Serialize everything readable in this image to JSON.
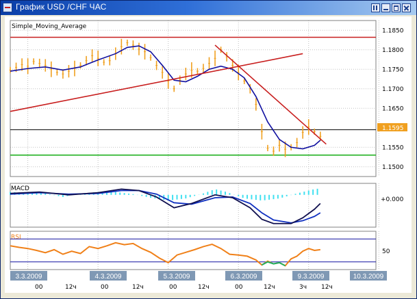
{
  "window": {
    "title": "График USD /CHF  ЧАС",
    "buttons": [
      "restore",
      "minimize",
      "maximize",
      "close"
    ]
  },
  "chart_data": {
    "type": "line",
    "title": "Simple_Moving_Average",
    "instrument": "USD /CHF",
    "timeframe": "ЧАС",
    "price_axis": {
      "ticks": [
        "1.1850",
        "1.1800",
        "1.1750",
        "1.1700",
        "1.1650",
        "1.1595",
        "1.1550",
        "1.1500"
      ],
      "range": [
        1.1475,
        1.1875
      ],
      "current_price": "1.1595"
    },
    "x_axis": {
      "dates": [
        "3.3.2009",
        "4.3.2009",
        "5.3.2009",
        "6.3.2009",
        "9.3.2009",
        "10.3.2009"
      ],
      "hours": [
        "00",
        "12ч",
        "00",
        "12ч",
        "00",
        "12ч",
        "00",
        "12ч",
        "3ч",
        "12ч"
      ]
    },
    "price_bars": [
      [
        0,
        1.1748
      ],
      [
        2,
        1.1755
      ],
      [
        4,
        1.1762
      ],
      [
        6,
        1.1758
      ],
      [
        8,
        1.177
      ],
      [
        10,
        1.1765
      ],
      [
        12,
        1.176
      ],
      [
        14,
        1.175
      ],
      [
        16,
        1.1742
      ],
      [
        18,
        1.1738
      ],
      [
        20,
        1.1745
      ],
      [
        22,
        1.1752
      ],
      [
        24,
        1.176
      ],
      [
        26,
        1.1772
      ],
      [
        28,
        1.1785
      ],
      [
        30,
        1.1778
      ],
      [
        32,
        1.1768
      ],
      [
        34,
        1.1772
      ],
      [
        36,
        1.179
      ],
      [
        38,
        1.1808
      ],
      [
        40,
        1.1818
      ],
      [
        42,
        1.1812
      ],
      [
        44,
        1.1802
      ],
      [
        46,
        1.1795
      ],
      [
        48,
        1.178
      ],
      [
        50,
        1.176
      ],
      [
        52,
        1.1742
      ],
      [
        54,
        1.172
      ],
      [
        56,
        1.17
      ],
      [
        58,
        1.1722
      ],
      [
        60,
        1.1738
      ],
      [
        62,
        1.1748
      ],
      [
        64,
        1.1745
      ],
      [
        66,
        1.1752
      ],
      [
        68,
        1.1765
      ],
      [
        70,
        1.1778
      ],
      [
        72,
        1.18
      ],
      [
        74,
        1.1782
      ],
      [
        76,
        1.176
      ],
      [
        78,
        1.1742
      ],
      [
        80,
        1.172
      ],
      [
        82,
        1.17
      ],
      [
        84,
        1.166
      ],
      [
        86,
        1.159
      ],
      [
        88,
        1.1548
      ],
      [
        90,
        1.154
      ],
      [
        92,
        1.1555
      ],
      [
        94,
        1.1545
      ],
      [
        96,
        1.155
      ],
      [
        98,
        1.1562
      ],
      [
        100,
        1.1588
      ],
      [
        102,
        1.1602
      ],
      [
        104,
        1.159
      ],
      [
        106,
        1.1578
      ]
    ],
    "moving_average": [
      [
        0,
        1.1745
      ],
      [
        6,
        1.1752
      ],
      [
        12,
        1.1756
      ],
      [
        18,
        1.1748
      ],
      [
        24,
        1.1756
      ],
      [
        30,
        1.1774
      ],
      [
        36,
        1.179
      ],
      [
        40,
        1.1806
      ],
      [
        44,
        1.181
      ],
      [
        48,
        1.1795
      ],
      [
        52,
        1.176
      ],
      [
        56,
        1.1722
      ],
      [
        60,
        1.1718
      ],
      [
        64,
        1.1732
      ],
      [
        68,
        1.175
      ],
      [
        72,
        1.1758
      ],
      [
        76,
        1.175
      ],
      [
        80,
        1.1728
      ],
      [
        84,
        1.168
      ],
      [
        88,
        1.1615
      ],
      [
        92,
        1.157
      ],
      [
        96,
        1.155
      ],
      [
        100,
        1.1546
      ],
      [
        104,
        1.1555
      ],
      [
        106,
        1.1568
      ]
    ],
    "horizontal_lines": [
      {
        "value": 1.1832,
        "color": "#c81e1e"
      },
      {
        "value": 1.1595,
        "color": "#000000"
      },
      {
        "value": 1.153,
        "color": "#20b020"
      }
    ],
    "trend_lines": [
      {
        "from": [
          0,
          1.1642
        ],
        "to": [
          100,
          1.179
        ],
        "color": "#c81e1e"
      },
      {
        "from": [
          70,
          1.1812
        ],
        "to": [
          108,
          1.1558
        ],
        "color": "#c81e1e"
      }
    ],
    "macd": {
      "label": "MACD",
      "zero_label": "+0.000",
      "range": [
        -0.0045,
        0.0016
      ],
      "main": [
        [
          0,
          0.0002
        ],
        [
          10,
          0.0004
        ],
        [
          20,
          0.0
        ],
        [
          30,
          0.0003
        ],
        [
          38,
          0.0008
        ],
        [
          44,
          0.0006
        ],
        [
          50,
          -0.0003
        ],
        [
          56,
          -0.0018
        ],
        [
          62,
          -0.0012
        ],
        [
          70,
          0.0
        ],
        [
          76,
          -0.0004
        ],
        [
          82,
          -0.0018
        ],
        [
          86,
          -0.0034
        ],
        [
          90,
          -0.004
        ],
        [
          96,
          -0.004
        ],
        [
          100,
          -0.0032
        ],
        [
          104,
          -0.002
        ],
        [
          106,
          -0.0012
        ]
      ],
      "signal": [
        [
          0,
          0.0001
        ],
        [
          10,
          0.0003
        ],
        [
          20,
          0.0001
        ],
        [
          30,
          0.0002
        ],
        [
          38,
          0.0006
        ],
        [
          44,
          0.0006
        ],
        [
          50,
          0.0001
        ],
        [
          56,
          -0.0011
        ],
        [
          62,
          -0.0013
        ],
        [
          70,
          -0.0004
        ],
        [
          76,
          -0.0003
        ],
        [
          82,
          -0.0012
        ],
        [
          86,
          -0.0025
        ],
        [
          90,
          -0.0035
        ],
        [
          96,
          -0.0039
        ],
        [
          100,
          -0.0036
        ],
        [
          104,
          -0.003
        ],
        [
          106,
          -0.0025
        ]
      ],
      "histogram": [
        [
          0,
          0.0004
        ],
        [
          6,
          0.0003
        ],
        [
          12,
          0.0002
        ],
        [
          18,
          -0.0003
        ],
        [
          24,
          0.0002
        ],
        [
          30,
          0.0004
        ],
        [
          36,
          0.0004
        ],
        [
          42,
          0.0001
        ],
        [
          48,
          -0.0004
        ],
        [
          54,
          -0.0008
        ],
        [
          60,
          -0.0005
        ],
        [
          66,
          0.0002
        ],
        [
          70,
          0.0008
        ],
        [
          74,
          0.0004
        ],
        [
          80,
          -0.0005
        ],
        [
          86,
          -0.0008
        ],
        [
          92,
          -0.0005
        ],
        [
          98,
          0.0002
        ],
        [
          104,
          0.0008
        ],
        [
          106,
          0.0009
        ]
      ]
    },
    "rsi": {
      "label": "RSI",
      "level_label": "50",
      "range": [
        0,
        100
      ],
      "levels": [
        80,
        20
      ],
      "values": [
        [
          0,
          62
        ],
        [
          3,
          58
        ],
        [
          6,
          55
        ],
        [
          9,
          50
        ],
        [
          12,
          44
        ],
        [
          15,
          52
        ],
        [
          18,
          40
        ],
        [
          21,
          48
        ],
        [
          24,
          42
        ],
        [
          27,
          60
        ],
        [
          30,
          55
        ],
        [
          33,
          62
        ],
        [
          36,
          70
        ],
        [
          39,
          65
        ],
        [
          42,
          68
        ],
        [
          45,
          55
        ],
        [
          48,
          45
        ],
        [
          51,
          30
        ],
        [
          54,
          18
        ],
        [
          57,
          38
        ],
        [
          60,
          45
        ],
        [
          63,
          52
        ],
        [
          66,
          60
        ],
        [
          69,
          66
        ],
        [
          72,
          55
        ],
        [
          75,
          40
        ],
        [
          78,
          38
        ],
        [
          81,
          35
        ],
        [
          84,
          25
        ],
        [
          86,
          12
        ],
        [
          88,
          22
        ],
        [
          90,
          15
        ],
        [
          92,
          18
        ],
        [
          94,
          10
        ],
        [
          96,
          28
        ],
        [
          98,
          35
        ],
        [
          100,
          48
        ],
        [
          102,
          55
        ],
        [
          104,
          50
        ],
        [
          106,
          52
        ]
      ]
    },
    "colors": {
      "bars": "#f0a020",
      "moving_average": "#1010a0",
      "macd_main": "#101050",
      "macd_signal": "#1030c0",
      "macd_histogram": "#40e0f0",
      "rsi": "#f08018",
      "rsi_oversold": "#20b060",
      "price_tag": "#f0a020",
      "date_tag": "#7f98b4",
      "grid": "#c0c0c0"
    }
  }
}
